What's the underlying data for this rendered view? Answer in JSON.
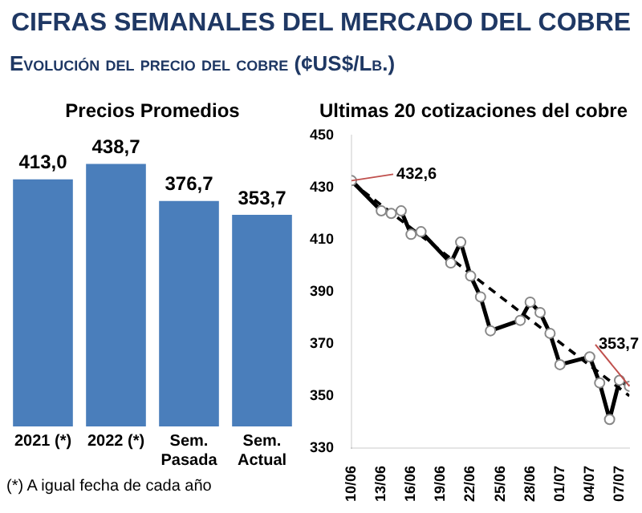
{
  "chart_data": [
    {
      "type": "other",
      "title": "CIFRAS SEMANALES DEL MERCADO DEL COBRE",
      "subtitle": "Evolución del precio del cobre (¢US$/Lb.)"
    },
    {
      "type": "bar",
      "title": "Precios Promedios",
      "legend": false,
      "grid": false,
      "tick_labels": "x",
      "categories": [
        "2021 (*)",
        "2022 (*)",
        "Sem. Pasada",
        "Sem. Actual"
      ],
      "series": [
        {
          "type": "bar",
          "color": "#4a7ebb",
          "values": [
            413.0,
            438.7,
            376.7,
            353.7
          ],
          "value_labels": [
            "413,0",
            "438,7",
            "376,7",
            "353,7"
          ]
        }
      ],
      "annotations": [
        "(*) A igual fecha de cada año"
      ]
    },
    {
      "type": "line",
      "title": "Ultimas 20 cotizaciones del cobre",
      "legend": false,
      "grid": false,
      "marker": "circle",
      "series": [
        {
          "color": "#000000",
          "line_style": "solid",
          "x": [
            "--06-10",
            "--06-13",
            "--06-14",
            "--06-15",
            "--06-16",
            "--06-17",
            "--06-20",
            "--06-21",
            "--06-22",
            "--06-23",
            "--06-24",
            "--06-27",
            "--06-28",
            "--06-29",
            "--06-30",
            "--07-01",
            "--07-04",
            "--07-05",
            "--07-06",
            "--07-07",
            "--07-08"
          ],
          "values": [
            432.6,
            421,
            420,
            421,
            412,
            413,
            401,
            409,
            396,
            388,
            375,
            379,
            386,
            382,
            374,
            362,
            365,
            355,
            341,
            356,
            353.7
          ]
        },
        {
          "type": "line",
          "color": "#000000",
          "line_style": "dashed",
          "marker": "none",
          "x": [
            "--06-10",
            "--07-08"
          ],
          "values": [
            432,
            350
          ]
        }
      ],
      "xlim": [
        "--06-10",
        "--07-08"
      ],
      "xticks": [
        {
          "value": "--06-10",
          "label": "10/06"
        },
        {
          "value": "--06-13",
          "label": "13/06"
        },
        {
          "value": "--06-16",
          "label": "16/06"
        },
        {
          "value": "--06-19",
          "label": "19/06"
        },
        {
          "value": "--06-22",
          "label": "22/06"
        },
        {
          "value": "--06-25",
          "label": "25/06"
        },
        {
          "value": "--06-28",
          "label": "28/06"
        },
        {
          "value": "--07-01",
          "label": "01/07"
        },
        {
          "value": "--07-04",
          "label": "04/07"
        },
        {
          "value": "--07-07",
          "label": "07/07"
        }
      ],
      "ylim": [
        330,
        450
      ],
      "yticks": [
        330,
        350,
        370,
        390,
        410,
        430,
        450
      ],
      "annotations": [
        {
          "text": "432,6",
          "x": "--06-10",
          "y": 432.6
        },
        {
          "text": "353,7",
          "x": "--07-08",
          "y": 353.7
        }
      ]
    }
  ]
}
